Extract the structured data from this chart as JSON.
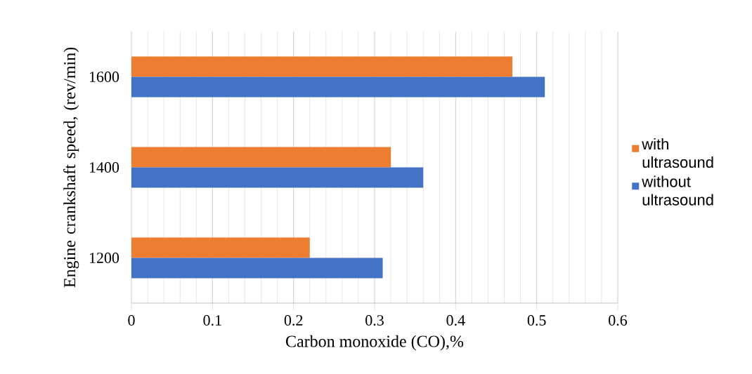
{
  "chart_data": {
    "type": "bar",
    "orientation": "horizontal",
    "xlabel": "Carbon monoxide (CO),%",
    "ylabel": "Engine crankshaft speed, (rev/min)",
    "categories": [
      "1600",
      "1400",
      "1200"
    ],
    "series": [
      {
        "name": "with ultrasound",
        "color": "#ed7d31",
        "values": [
          0.47,
          0.32,
          0.22
        ]
      },
      {
        "name": "without ultrasound",
        "color": "#4472c4",
        "values": [
          0.51,
          0.36,
          0.31
        ]
      }
    ],
    "xlim": [
      0,
      0.6
    ],
    "xticks": [
      0,
      0.1,
      0.2,
      0.3,
      0.4,
      0.5,
      0.6
    ],
    "grid": "x",
    "legend": "right"
  }
}
